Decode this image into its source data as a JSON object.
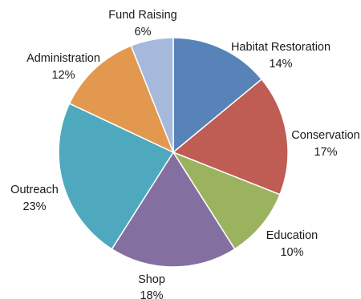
{
  "chart_data": {
    "type": "pie",
    "title": "",
    "start_angle_deg": 0,
    "direction": "clockwise",
    "slices": [
      {
        "label": "Habitat Restoration",
        "value": 14,
        "pct_label": "14%",
        "color": "#5783b8"
      },
      {
        "label": "Conservation",
        "value": 17,
        "pct_label": "17%",
        "color": "#bf5c54"
      },
      {
        "label": "Education",
        "value": 10,
        "pct_label": "10%",
        "color": "#9bb25f"
      },
      {
        "label": "Shop",
        "value": 18,
        "pct_label": "18%",
        "color": "#8370a0"
      },
      {
        "label": "Outreach",
        "value": 23,
        "pct_label": "23%",
        "color": "#4ea9bf"
      },
      {
        "label": "Administration",
        "value": 12,
        "pct_label": "12%",
        "color": "#e2984f"
      },
      {
        "label": "Fund Raising",
        "value": 6,
        "pct_label": "6%",
        "color": "#a6b9dd"
      }
    ]
  }
}
